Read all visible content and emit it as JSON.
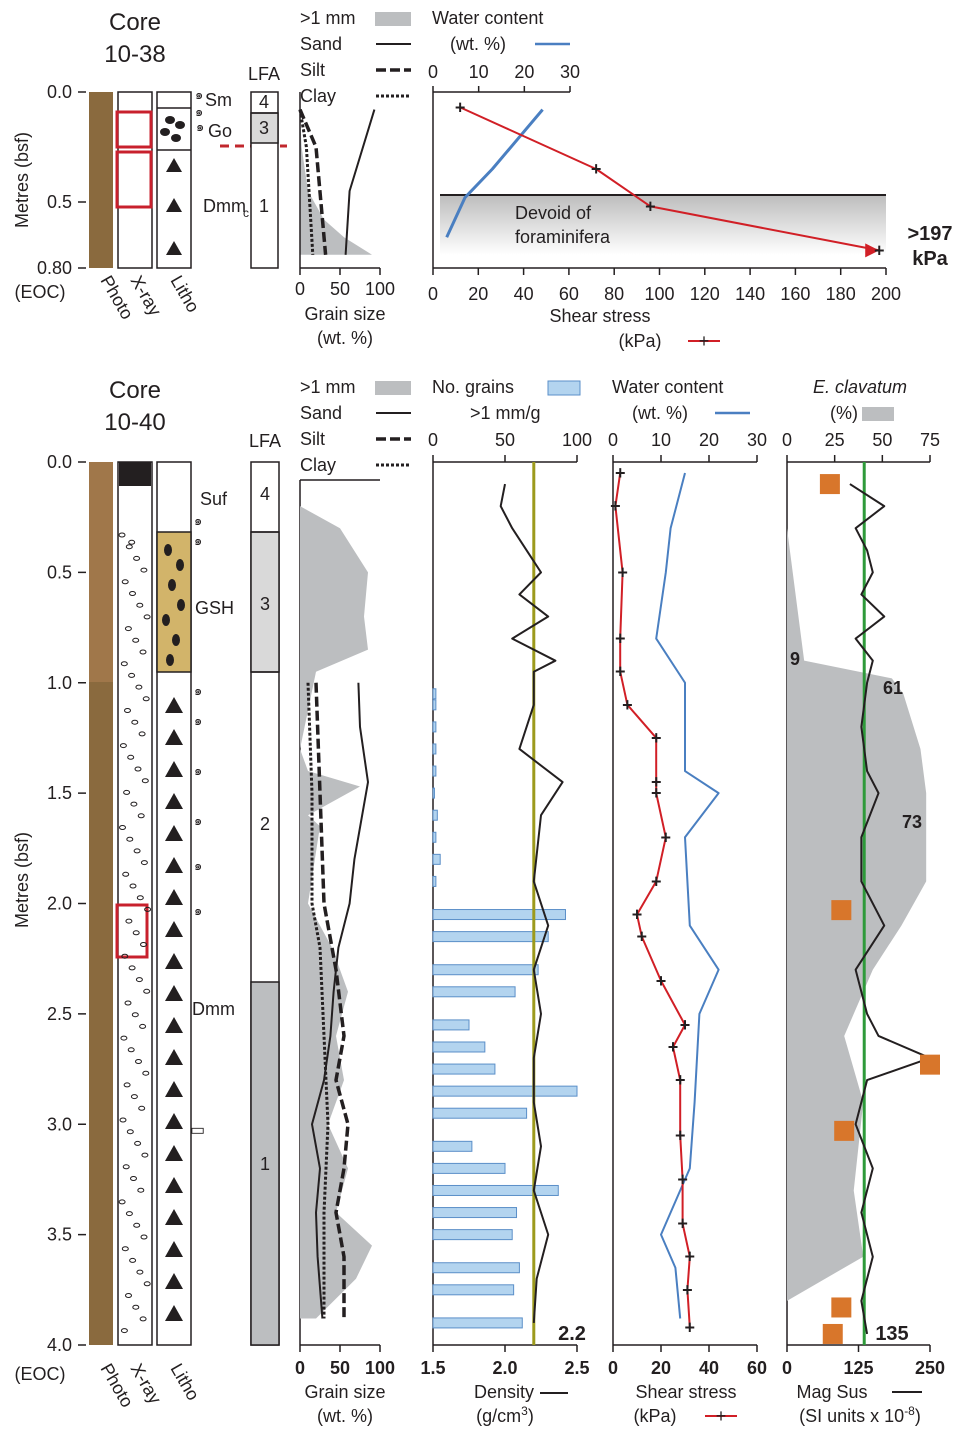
{
  "colors": {
    "ink": "#231f20",
    "grey_fill": "#bcbec0",
    "light_grey": "#d9d9d9",
    "blue_line": "#4a7fc1",
    "blue_bar": "#b3d4ef",
    "red_line": "#d11f26",
    "red_box": "#c8202d",
    "olive_line": "#9c9a1d",
    "green_line": "#2e9a3a",
    "orange_marker": "#d8762b",
    "gsh_fill": "#d2b46a",
    "core_photo": "#8a6a3e",
    "annotation_red": "#c1272d",
    "annotation_green": "#2e8b3e",
    "annotation_olive": "#9c9a1d"
  },
  "core_1038": {
    "title_line1": "Core",
    "title_line2": "10-38",
    "depth_axis_label": "Metres (bsf)",
    "depth_ticks": [
      "0.0",
      "0.5",
      "0.80"
    ],
    "eoc_label": "(EOC)",
    "column_labels": {
      "photo": "Photo",
      "xray": "X-ray",
      "litho": "Litho"
    },
    "facies_labels": [
      {
        "text": "Sm",
        "icon": "fossil-shell-icon"
      },
      {
        "text": "Go",
        "icon": "fossil-shell-icon"
      },
      {
        "text": "Dmm",
        "subscript": "c"
      }
    ],
    "lfa_header": "LFA",
    "lfa_units": [
      "4",
      "3",
      "1"
    ],
    "legend": {
      "coarse": ">1 mm",
      "sand": "Sand",
      "silt": "Silt",
      "clay": "Clay",
      "water": "Water content",
      "water_unit": "(wt. %)"
    },
    "grain_axis": {
      "ticks": [
        "0",
        "50",
        "100"
      ],
      "label": "Grain size",
      "unit": "(wt. %)"
    },
    "water_axis": {
      "ticks": [
        "0",
        "10",
        "20",
        "30"
      ]
    },
    "shear_axis": {
      "ticks": [
        "0",
        "20",
        "40",
        "60",
        "80",
        "100",
        "120",
        "140",
        "160",
        "180",
        "200"
      ],
      "label": "Shear stress",
      "unit": "(kPa)"
    },
    "annotation_devoid": [
      "Devoid of",
      "foraminifera"
    ],
    "annotation_max": [
      ">197",
      "kPa"
    ]
  },
  "core_1040": {
    "title_line1": "Core",
    "title_line2": "10-40",
    "depth_axis_label": "Metres (bsf)",
    "depth_ticks": [
      "0.0",
      "0.5",
      "1.0",
      "1.5",
      "2.0",
      "2.5",
      "3.0",
      "3.5",
      "4.0"
    ],
    "eoc_label": "(EOC)",
    "column_labels": {
      "photo": "Photo",
      "xray": "X-ray",
      "litho": "Litho"
    },
    "facies_labels": [
      "Suf",
      "GSH",
      "Dmm"
    ],
    "lfa_header": "LFA",
    "lfa_units": [
      "4",
      "3",
      "2",
      "1"
    ],
    "legend": {
      "coarse": ">1 mm",
      "sand": "Sand",
      "silt": "Silt",
      "clay": "Clay",
      "grains": "No. grains",
      "grains_unit": ">1 mm/g",
      "water": "Water content",
      "water_unit": "(wt. %)",
      "eclav": "E. clavatum",
      "eclav_unit": "(%)"
    },
    "grain_axis": {
      "ticks": [
        "0",
        "50",
        "100"
      ],
      "label": "Grain size",
      "unit": "(wt. %)"
    },
    "grains_axis": {
      "ticks": [
        "0",
        "50",
        "100"
      ]
    },
    "density_axis": {
      "ticks": [
        "1.5",
        "2.0",
        "2.5"
      ],
      "label": "Density",
      "unit": "(g/cm",
      "unit_sup": "3",
      "unit_end": ")"
    },
    "density_ref": "2.2",
    "water_axis": {
      "ticks": [
        "0",
        "10",
        "20",
        "30"
      ]
    },
    "shear_axis": {
      "ticks": [
        "0",
        "20",
        "40",
        "60"
      ],
      "label": "Shear stress",
      "unit": "(kPa)"
    },
    "eclav_axis": {
      "ticks": [
        "0",
        "25",
        "50",
        "75"
      ]
    },
    "magsus_axis": {
      "ticks": [
        "0",
        "125",
        "250"
      ],
      "label": "Mag Sus",
      "unit": "(SI units x 10",
      "unit_sup": "-8",
      "unit_end": ")"
    },
    "eclav_labels": [
      "9",
      "61",
      "73"
    ],
    "magsus_ref": "135"
  },
  "chart_data": [
    {
      "type": "area",
      "id": "core_1038_grain_size",
      "depth_unit": "m bsf",
      "xlim": [
        0,
        100
      ],
      "series": [
        {
          "name": ">1 mm",
          "depth": [
            0.1,
            0.25,
            0.45,
            0.58,
            0.66,
            0.74
          ],
          "values": [
            0,
            2,
            10,
            30,
            55,
            90
          ]
        },
        {
          "name": "Sand",
          "depth": [
            0.08,
            0.45,
            0.74
          ],
          "values": [
            93,
            62,
            57
          ]
        },
        {
          "name": "Silt",
          "depth": [
            0.08,
            0.25,
            0.74
          ],
          "values": [
            0,
            20,
            32
          ]
        },
        {
          "name": "Clay",
          "depth": [
            0.08,
            0.25,
            0.74
          ],
          "values": [
            0,
            8,
            16
          ]
        }
      ]
    },
    {
      "type": "line",
      "id": "core_1038_water_content",
      "xlim": [
        0,
        30
      ],
      "series": [
        {
          "name": "Water content",
          "depth": [
            0.08,
            0.35,
            0.48,
            0.66
          ],
          "values": [
            24,
            13,
            7,
            3
          ]
        }
      ]
    },
    {
      "type": "line",
      "id": "core_1038_shear_stress",
      "xlim": [
        0,
        200
      ],
      "series": [
        {
          "name": "Shear stress",
          "depth": [
            0.07,
            0.35,
            0.52,
            0.72
          ],
          "values": [
            12,
            72,
            96,
            197
          ]
        }
      ]
    },
    {
      "type": "area",
      "id": "core_1040_grain_size",
      "xlim": [
        0,
        100
      ],
      "series": [
        {
          "name": ">1 mm",
          "depth": [
            0.2,
            0.3,
            0.5,
            0.7,
            0.85,
            0.95,
            1.3,
            1.4,
            1.47,
            1.6,
            1.65,
            2.0,
            2.2,
            2.4,
            2.6,
            2.8,
            3.0,
            3.2,
            3.4,
            3.55,
            3.7,
            3.88
          ],
          "values": [
            0,
            50,
            85,
            80,
            85,
            20,
            0,
            10,
            75,
            10,
            25,
            10,
            40,
            60,
            45,
            55,
            35,
            60,
            45,
            90,
            70,
            20
          ]
        },
        {
          "name": "Sand",
          "depth": [
            1.0,
            1.2,
            1.45,
            1.8,
            2.0,
            2.2,
            2.4,
            2.6,
            2.8,
            3.0,
            3.2,
            3.4,
            3.6,
            3.88
          ],
          "values": [
            73,
            75,
            85,
            68,
            62,
            48,
            42,
            38,
            30,
            15,
            25,
            20,
            22,
            28
          ]
        },
        {
          "name": "Silt",
          "depth": [
            1.0,
            1.5,
            2.0,
            2.3,
            2.6,
            2.8,
            3.0,
            3.2,
            3.4,
            3.6,
            3.88
          ],
          "values": [
            20,
            25,
            30,
            45,
            55,
            45,
            60,
            55,
            45,
            55,
            55
          ]
        },
        {
          "name": "Clay",
          "depth": [
            1.0,
            1.5,
            2.0,
            2.2,
            2.6,
            3.0,
            3.4,
            3.88
          ],
          "values": [
            10,
            15,
            15,
            25,
            30,
            35,
            30,
            30
          ]
        }
      ]
    },
    {
      "type": "bar",
      "id": "core_1040_grains_per_g",
      "xlim": [
        0,
        100
      ],
      "depth": [
        1.05,
        1.1,
        1.2,
        1.3,
        1.4,
        1.5,
        1.6,
        1.7,
        1.8,
        1.9,
        2.05,
        2.15,
        2.3,
        2.4,
        2.55,
        2.65,
        2.75,
        2.85,
        2.95,
        3.1,
        3.2,
        3.3,
        3.4,
        3.5,
        3.65,
        3.75,
        3.9
      ],
      "values": [
        2,
        2,
        2,
        2,
        2,
        1,
        3,
        2,
        5,
        2,
        92,
        80,
        73,
        57,
        25,
        36,
        43,
        100,
        65,
        27,
        50,
        87,
        58,
        55,
        60,
        56,
        62
      ]
    },
    {
      "type": "line",
      "id": "core_1040_density",
      "xlim": [
        1.5,
        2.5
      ],
      "reference": 2.2,
      "series": [
        {
          "name": "Density",
          "depth": [
            0.1,
            0.2,
            0.3,
            0.4,
            0.5,
            0.6,
            0.7,
            0.8,
            0.9,
            0.95,
            1.1,
            1.3,
            1.45,
            1.6,
            1.9,
            2.1,
            2.3,
            2.5,
            2.7,
            2.9,
            3.1,
            3.3,
            3.5,
            3.7,
            3.9
          ],
          "values": [
            2.0,
            1.97,
            2.05,
            2.15,
            2.25,
            2.1,
            2.3,
            2.05,
            2.35,
            2.2,
            2.2,
            2.1,
            2.4,
            2.25,
            2.2,
            2.3,
            2.2,
            2.25,
            2.2,
            2.2,
            2.25,
            2.2,
            2.3,
            2.22,
            2.2
          ]
        }
      ]
    },
    {
      "type": "line",
      "id": "core_1040_water_content",
      "xlim": [
        0,
        30
      ],
      "series": [
        {
          "name": "Water content",
          "depth": [
            0.05,
            0.3,
            0.5,
            0.8,
            1.0,
            1.2,
            1.4,
            1.5,
            1.7,
            2.1,
            2.3,
            2.5,
            2.9,
            3.2,
            3.5,
            3.65,
            3.88
          ],
          "values": [
            15,
            12,
            11,
            9,
            15,
            15,
            15,
            22,
            15,
            16,
            22,
            18,
            17,
            16,
            10,
            13,
            14
          ]
        }
      ]
    },
    {
      "type": "line",
      "id": "core_1040_shear_stress",
      "xlim": [
        0,
        60
      ],
      "series": [
        {
          "name": "Shear stress",
          "depth": [
            0.05,
            0.2,
            0.5,
            0.8,
            0.95,
            1.1,
            1.25,
            1.45,
            1.5,
            1.7,
            1.9,
            2.05,
            2.15,
            2.35,
            2.55,
            2.65,
            2.8,
            3.05,
            3.25,
            3.45,
            3.6,
            3.75,
            3.92
          ],
          "values": [
            3,
            1,
            4,
            3,
            3,
            6,
            18,
            18,
            18,
            22,
            18,
            10,
            12,
            20,
            30,
            25,
            28,
            28,
            29,
            29,
            32,
            31,
            32
          ]
        }
      ]
    },
    {
      "type": "area",
      "id": "core_1040_eclavatum",
      "xlim": [
        0,
        75
      ],
      "series": [
        {
          "name": "E. clavatum",
          "depth": [
            0.3,
            0.9,
            0.98,
            1.05,
            1.3,
            1.5,
            1.7,
            1.9,
            2.1,
            2.3,
            2.6,
            2.9,
            3.3,
            3.6,
            3.8
          ],
          "values": [
            0,
            9,
            55,
            61,
            70,
            73,
            73,
            73,
            60,
            45,
            30,
            40,
            35,
            40,
            0
          ]
        }
      ]
    },
    {
      "type": "line",
      "id": "core_1040_magsus",
      "xlim": [
        0,
        250
      ],
      "reference": 135,
      "series": [
        {
          "name": "Mag Sus",
          "depth": [
            0.1,
            0.2,
            0.3,
            0.4,
            0.5,
            0.6,
            0.7,
            0.8,
            0.9,
            1.0,
            1.2,
            1.4,
            1.5,
            1.7,
            1.9,
            2.1,
            2.3,
            2.5,
            2.6,
            2.7,
            2.8,
            3.0,
            3.2,
            3.4,
            3.6,
            3.8,
            3.95
          ],
          "values": [
            110,
            170,
            120,
            140,
            150,
            130,
            170,
            120,
            150,
            140,
            130,
            140,
            160,
            130,
            130,
            170,
            120,
            140,
            160,
            250,
            140,
            120,
            150,
            130,
            150,
            130,
            140
          ]
        }
      ],
      "markers": {
        "depth": [
          0.1,
          2.03,
          2.73,
          3.03,
          3.83,
          3.95
        ],
        "values": [
          75,
          95,
          250,
          100,
          95,
          80
        ]
      }
    }
  ]
}
